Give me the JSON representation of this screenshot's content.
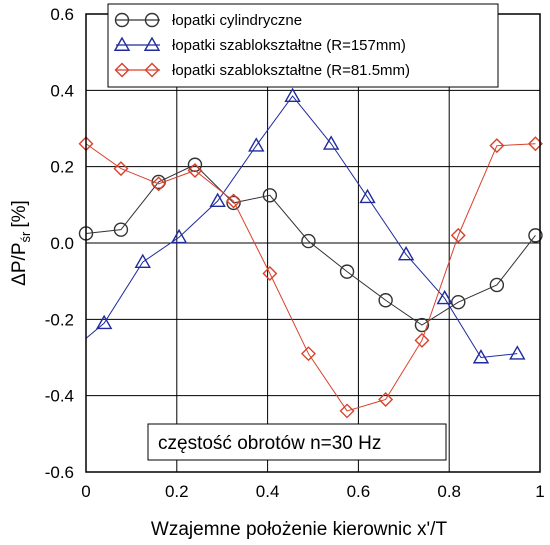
{
  "chart_data": {
    "type": "line",
    "title": "",
    "xlabel": "Wzajemne położenie kierownic x'/T",
    "ylabel_main": "ΔP/P",
    "ylabel_sub": "śr",
    "ylabel_unit": "[%]",
    "xlim": [
      0,
      1
    ],
    "ylim": [
      -0.6,
      0.6
    ],
    "xticks": [
      0,
      0.2,
      0.4,
      0.6,
      0.8,
      1
    ],
    "xtick_labels": [
      "0",
      "0.2",
      "0.4",
      "0.6",
      "0.8",
      "1"
    ],
    "yticks": [
      -0.6,
      -0.4,
      -0.2,
      0.0,
      0.2,
      0.4,
      0.6
    ],
    "ytick_labels": [
      "-0.6",
      "-0.4",
      "-0.2",
      "0.0",
      "0.2",
      "0.4",
      "0.6"
    ],
    "grid": true,
    "legend_position": "top-center",
    "annotation": "częstość obrotów n=30 Hz",
    "series": [
      {
        "name": "łopatki cylindryczne",
        "marker": "circle",
        "color": "#333333",
        "x": [
          0,
          0.077,
          0.16,
          0.24,
          0.325,
          0.405,
          0.49,
          0.575,
          0.66,
          0.74,
          0.82,
          0.905,
          0.99
        ],
        "y": [
          0.025,
          0.035,
          0.16,
          0.205,
          0.105,
          0.125,
          0.005,
          -0.075,
          -0.15,
          -0.215,
          -0.155,
          -0.11,
          0.02
        ]
      },
      {
        "name": "łopatki szablokształtne (R=157mm)",
        "marker": "triangle",
        "color": "#1f2a9e",
        "x": [
          0,
          0.04,
          0.125,
          0.205,
          0.29,
          0.375,
          0.455,
          0.54,
          0.62,
          0.705,
          0.79,
          0.87,
          0.95
        ],
        "y": [
          -0.25,
          -0.21,
          -0.05,
          0.015,
          0.11,
          0.255,
          0.385,
          0.26,
          0.12,
          -0.03,
          -0.145,
          -0.3,
          -0.29
        ]
      },
      {
        "name": "łopatki szablokształtne (R=81.5mm)",
        "marker": "diamond",
        "color": "#d9412b",
        "x": [
          0,
          0.077,
          0.16,
          0.24,
          0.325,
          0.405,
          0.49,
          0.575,
          0.66,
          0.74,
          0.82,
          0.905,
          0.99
        ],
        "y": [
          0.26,
          0.195,
          0.155,
          0.19,
          0.11,
          -0.08,
          -0.29,
          -0.44,
          -0.41,
          -0.255,
          0.02,
          0.255,
          0.26
        ]
      }
    ]
  }
}
